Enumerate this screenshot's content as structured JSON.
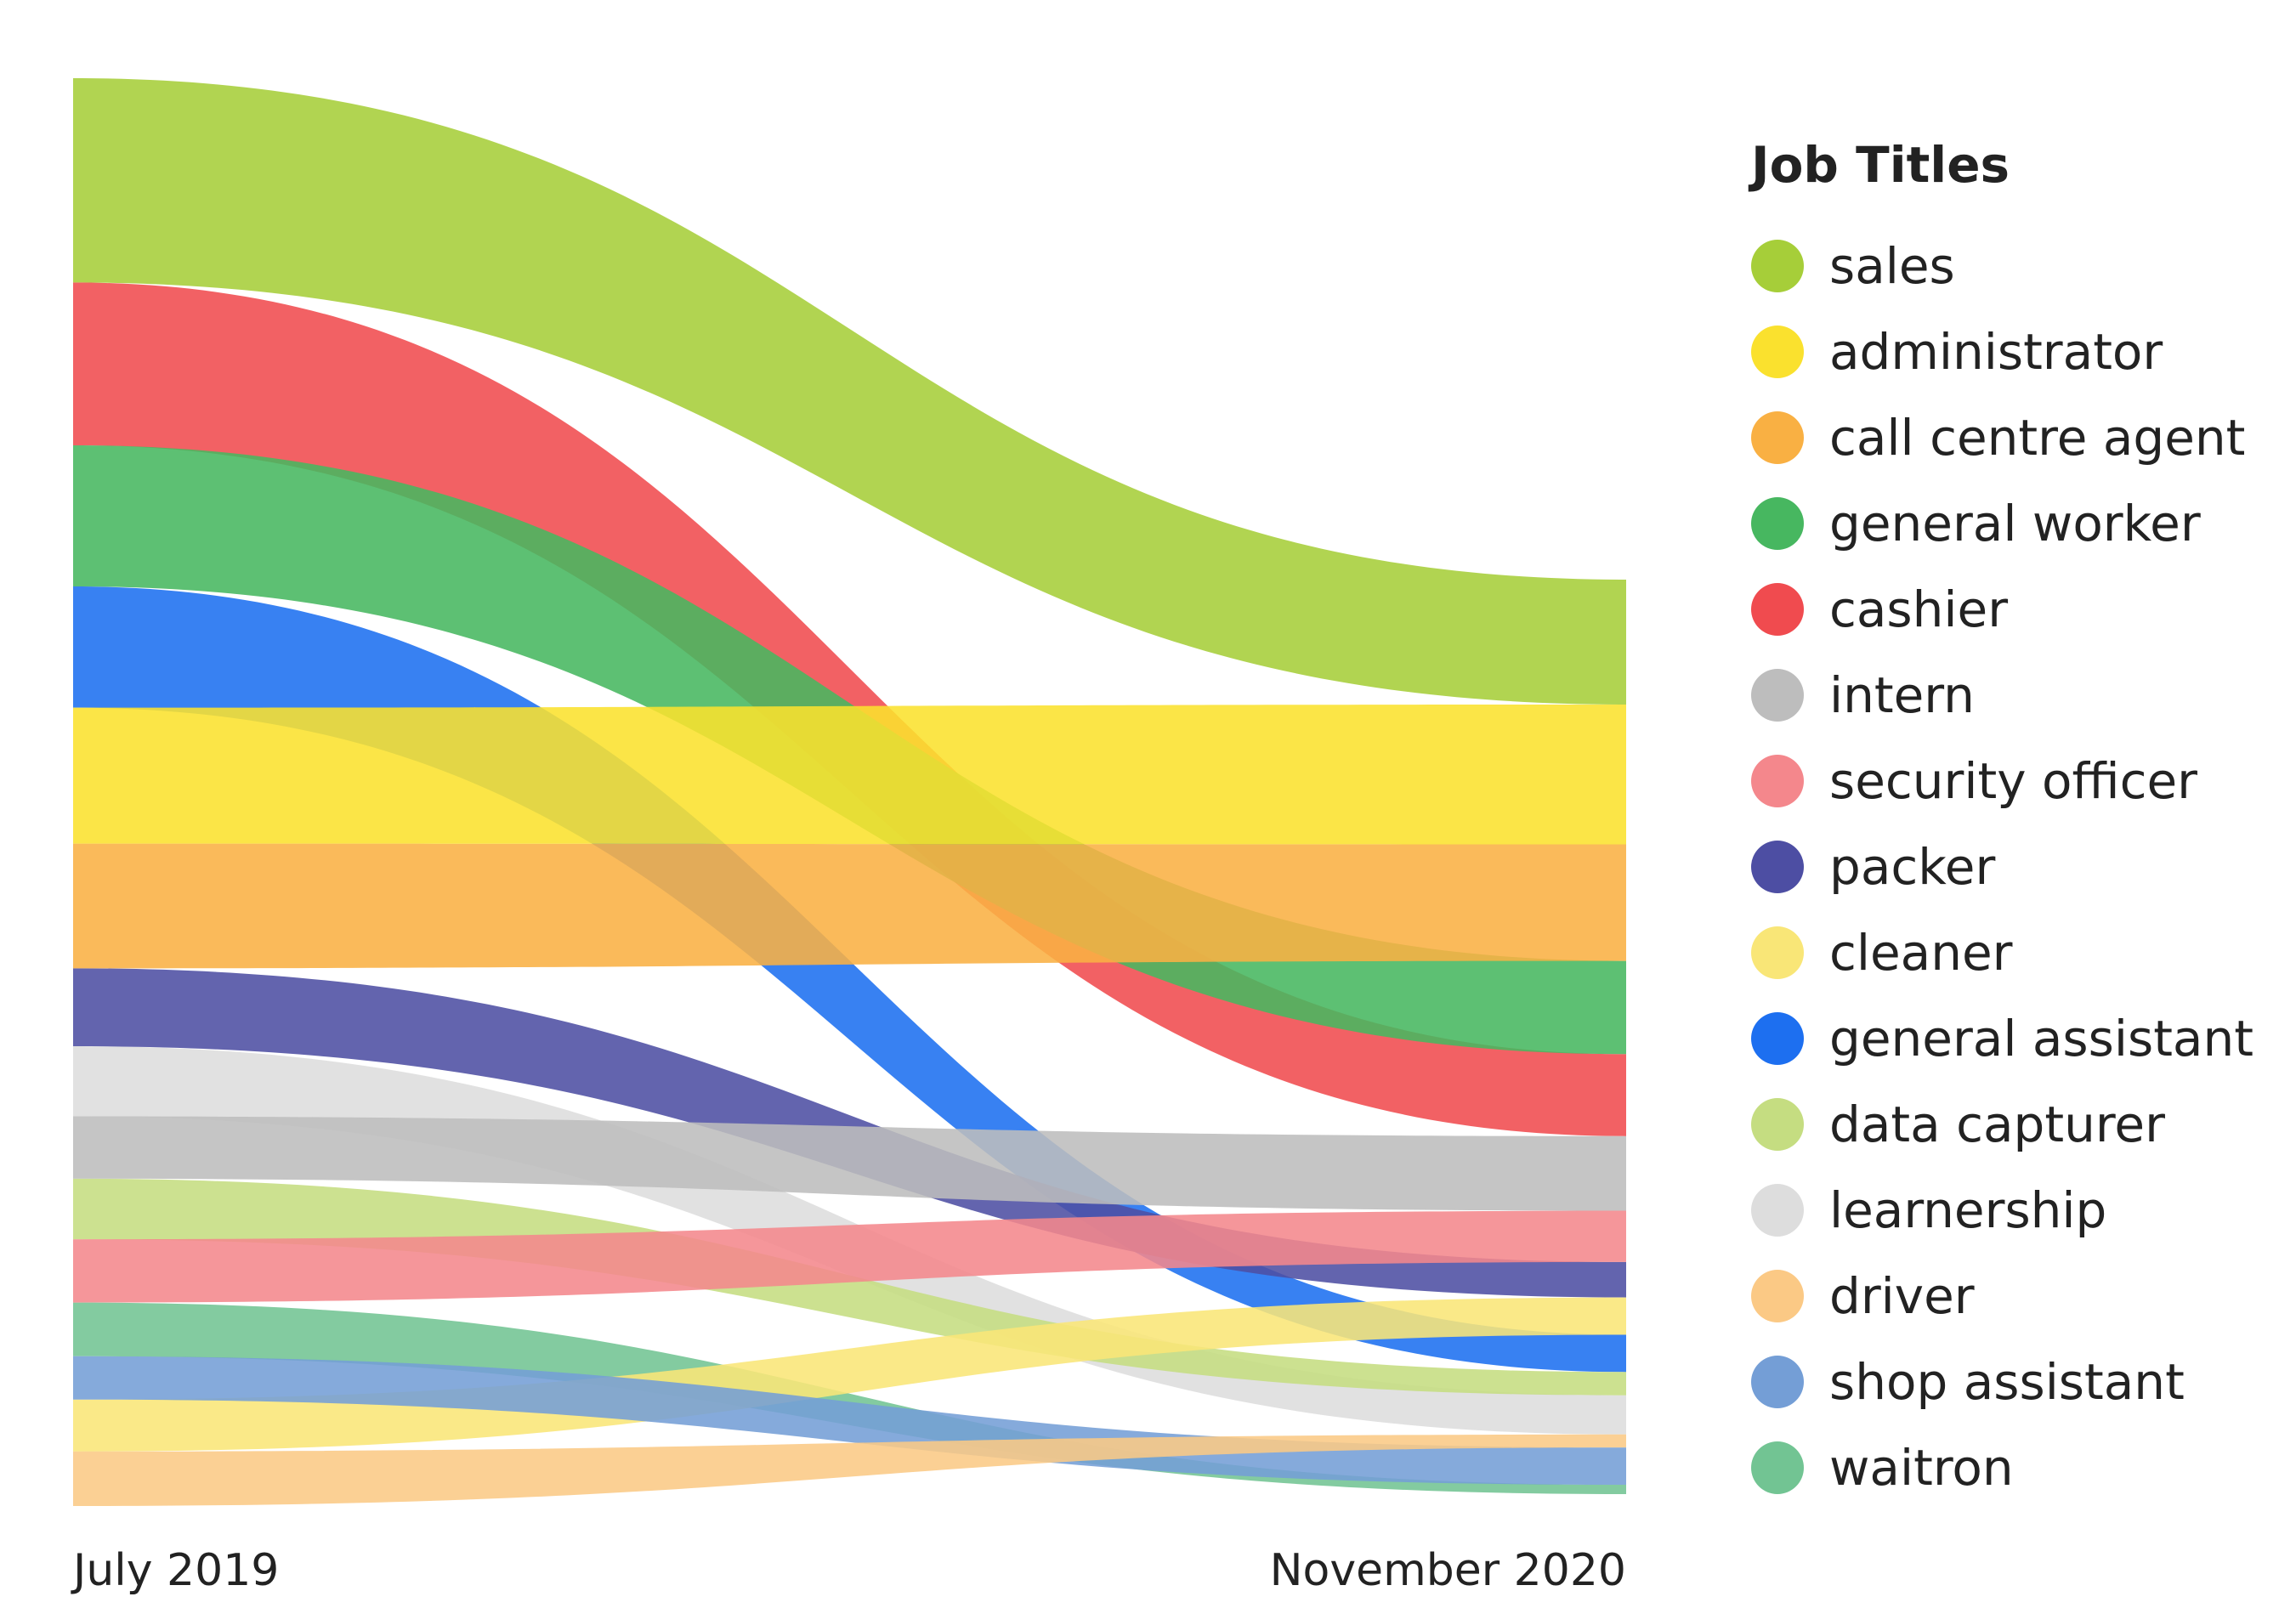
{
  "chart_data": {
    "type": "sankey",
    "title": "",
    "stages": [
      "July 2019",
      "November 2020"
    ],
    "legend_title": "Job Titles",
    "legend_position": "right",
    "categories": [
      "sales",
      "administrator",
      "call centre agent",
      "general worker",
      "cashier",
      "intern",
      "security officer",
      "packer",
      "cleaner",
      "general assistant",
      "data capturer",
      "learnership",
      "driver",
      "shop assistant",
      "waitron"
    ],
    "colors": {
      "sales": "#a6ce39",
      "administrator": "#fae12e",
      "call centre agent": "#f9b043",
      "general worker": "#47b760",
      "cashier": "#f04b4f",
      "intern": "#bdbdbd",
      "security officer": "#f4878c",
      "packer": "#4d4ea3",
      "cleaner": "#f9e677",
      "general assistant": "#1d6ff0",
      "data capturer": "#c5dd81",
      "learnership": "#dddddd",
      "driver": "#fbc985",
      "shop assistant": "#749ed6",
      "waitron": "#72c493"
    },
    "left_order": [
      "sales",
      "cashier",
      "general worker",
      "general assistant",
      "administrator",
      "call centre agent",
      "packer",
      "learnership",
      "intern",
      "data capturer",
      "security officer",
      "waitron",
      "shop assistant",
      "cleaner",
      "driver"
    ],
    "right_order": [
      "sales",
      "administrator",
      "call centre agent",
      "general worker",
      "cashier",
      "intern",
      "security officer",
      "packer",
      "cleaner",
      "general assistant",
      "data capturer",
      "learnership",
      "driver",
      "shop assistant",
      "waitron"
    ],
    "start_values": {
      "sales": 236,
      "cashier": 188,
      "general worker": 163,
      "general assistant": 140,
      "administrator": 157,
      "call centre agent": 144,
      "packer": 90,
      "learnership": 81,
      "intern": 72,
      "data capturer": 70,
      "security officer": 73,
      "waitron": 62,
      "shop assistant": 50,
      "cleaner": 60,
      "driver": 63
    },
    "end_values": {
      "sales": 134,
      "administrator": 150,
      "call centre agent": 125,
      "general worker": 100,
      "cashier": 88,
      "intern": 80,
      "security officer": 55,
      "packer": 38,
      "cleaner": 40,
      "general assistant": 40,
      "data capturer": 25,
      "learnership": 42,
      "driver": 14,
      "shop assistant": 40,
      "waitron": 10
    }
  }
}
